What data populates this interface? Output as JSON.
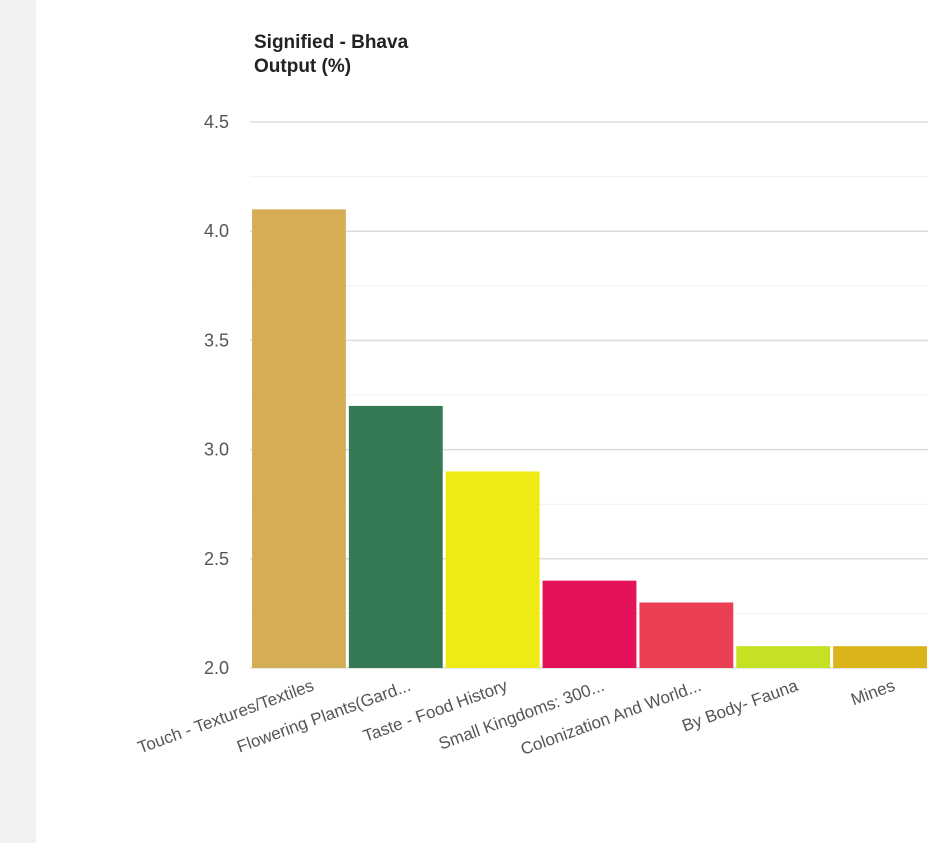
{
  "chart_data": {
    "type": "bar",
    "title_line1": "Signified - Bhava",
    "title_line2": "Output (%)",
    "categories": [
      "Touch - Textures/Textiles",
      "Flowering Plants(Gard...",
      "Taste - Food History",
      "Small Kingdoms: 300...",
      "Colonization And World...",
      "By Body- Fauna",
      "Mines"
    ],
    "values": [
      4.1,
      3.2,
      2.9,
      2.4,
      2.3,
      2.1,
      2.1
    ],
    "colors": [
      "#d4ad55",
      "#357a54",
      "#eeea13",
      "#e3125b",
      "#ea3f52",
      "#c6e024",
      "#d9b41a"
    ],
    "ylim": [
      2.0,
      4.5
    ],
    "yticks": [
      "2.0",
      "2.5",
      "3.0",
      "3.5",
      "4.0",
      "4.5"
    ],
    "grid": true,
    "legend": "none"
  }
}
